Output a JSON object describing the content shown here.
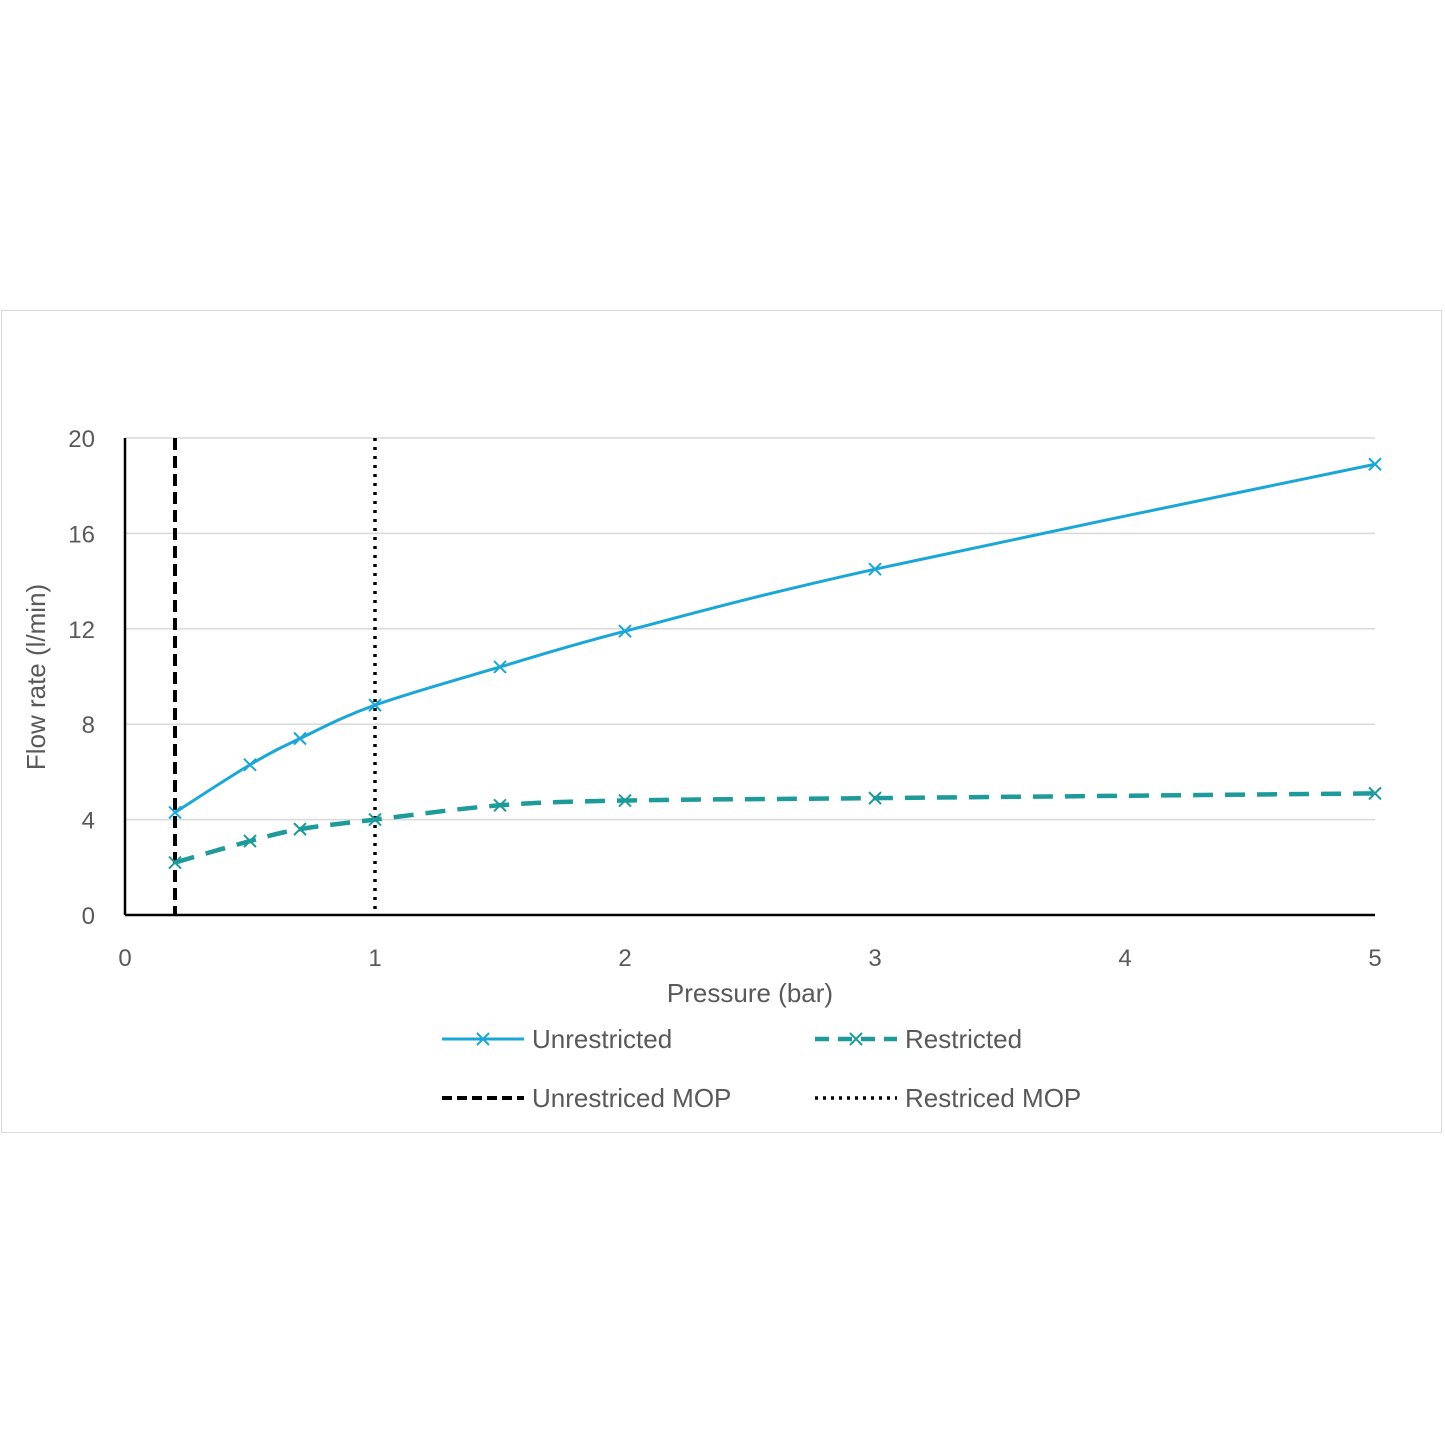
{
  "chart_data": {
    "type": "line",
    "xlabel": "Pressure (bar)",
    "ylabel": "Flow rate (l/min)",
    "xlim": [
      0,
      5
    ],
    "ylim": [
      0,
      20
    ],
    "x_ticks": [
      0,
      1,
      2,
      3,
      4,
      5
    ],
    "y_ticks": [
      0,
      4,
      8,
      12,
      16,
      20
    ],
    "grid": "horizontal",
    "legend_position": "bottom",
    "series": [
      {
        "name": "Unrestricted",
        "color": "#1aa7d8",
        "line_style": "solid",
        "marker": "x",
        "x": [
          0.2,
          0.5,
          0.7,
          1.0,
          1.5,
          2.0,
          3.0,
          5.0
        ],
        "y": [
          4.3,
          6.3,
          7.4,
          8.8,
          10.4,
          11.9,
          14.5,
          18.9
        ]
      },
      {
        "name": "Restricted",
        "color": "#1f9a9a",
        "line_style": "dashed",
        "marker": "x",
        "x": [
          0.2,
          0.5,
          0.7,
          1.0,
          1.5,
          2.0,
          3.0,
          5.0
        ],
        "y": [
          2.2,
          3.1,
          3.6,
          4.0,
          4.6,
          4.8,
          4.9,
          5.1
        ]
      }
    ],
    "vertical_lines": [
      {
        "name": "Unrestriced MOP",
        "x": 0.2,
        "color": "#000000",
        "line_style": "dashed"
      },
      {
        "name": "Restriced MOP",
        "x": 1.0,
        "color": "#000000",
        "line_style": "dotted"
      }
    ]
  }
}
